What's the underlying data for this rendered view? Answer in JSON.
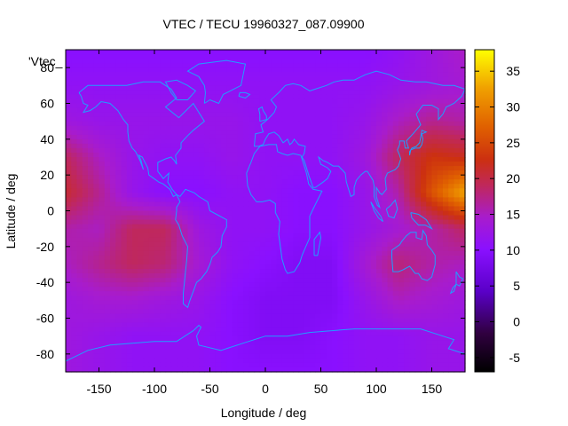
{
  "chart_data": {
    "type": "heatmap",
    "title": "VTEC / TECU 19960327_087.09900",
    "xlabel": "Longitude / deg",
    "ylabel": "Latitude / deg",
    "legend_label": "'Vtec_",
    "xlim": [
      -180,
      180
    ],
    "ylim": [
      -90,
      90
    ],
    "x_ticks": [
      -150,
      -100,
      -50,
      0,
      50,
      100,
      150
    ],
    "y_ticks": [
      -80,
      -60,
      -40,
      -20,
      0,
      20,
      40,
      60,
      80
    ],
    "colorbar": {
      "range": [
        -7,
        38
      ],
      "ticks": [
        -5,
        0,
        5,
        10,
        15,
        20,
        25,
        30,
        35
      ],
      "colormap": "gnuplot-pm3d (black-purple-red-orange-yellow)"
    },
    "coastline_color": "#1f9fff",
    "data_grid": {
      "lon_step_deg": 30,
      "lat_step_deg": 20,
      "lons": [
        -180,
        -150,
        -120,
        -90,
        -60,
        -30,
        0,
        30,
        60,
        90,
        120,
        150,
        180
      ],
      "lats": [
        90,
        70,
        50,
        30,
        10,
        -10,
        -30,
        -50,
        -70,
        -90
      ],
      "values": [
        [
          10,
          10,
          10,
          10,
          10,
          10,
          10,
          10,
          10,
          10,
          11,
          13,
          15
        ],
        [
          11,
          11,
          11,
          11,
          11,
          11,
          11,
          11,
          11,
          11,
          12,
          13,
          14
        ],
        [
          13,
          12,
          12,
          12,
          12,
          12,
          11,
          11,
          11,
          12,
          15,
          17,
          16
        ],
        [
          19,
          15,
          12,
          11,
          11,
          12,
          11,
          11,
          11,
          13,
          19,
          23,
          22
        ],
        [
          21,
          17,
          12,
          10,
          10,
          11,
          11,
          10,
          10,
          12,
          16,
          26,
          33
        ],
        [
          16,
          15,
          19,
          19,
          13,
          11,
          11,
          10,
          10,
          12,
          14,
          16,
          19
        ],
        [
          15,
          17,
          19,
          18,
          14,
          11,
          10,
          9,
          9,
          14,
          18,
          16,
          15
        ],
        [
          13,
          14,
          14,
          13,
          12,
          10,
          9,
          9,
          9,
          12,
          15,
          14,
          13
        ],
        [
          13,
          12,
          11,
          11,
          11,
          10,
          9,
          9,
          10,
          11,
          11,
          12,
          12
        ],
        [
          13,
          12,
          11,
          11,
          11,
          10,
          10,
          10,
          10,
          11,
          11,
          12,
          12
        ]
      ]
    }
  }
}
